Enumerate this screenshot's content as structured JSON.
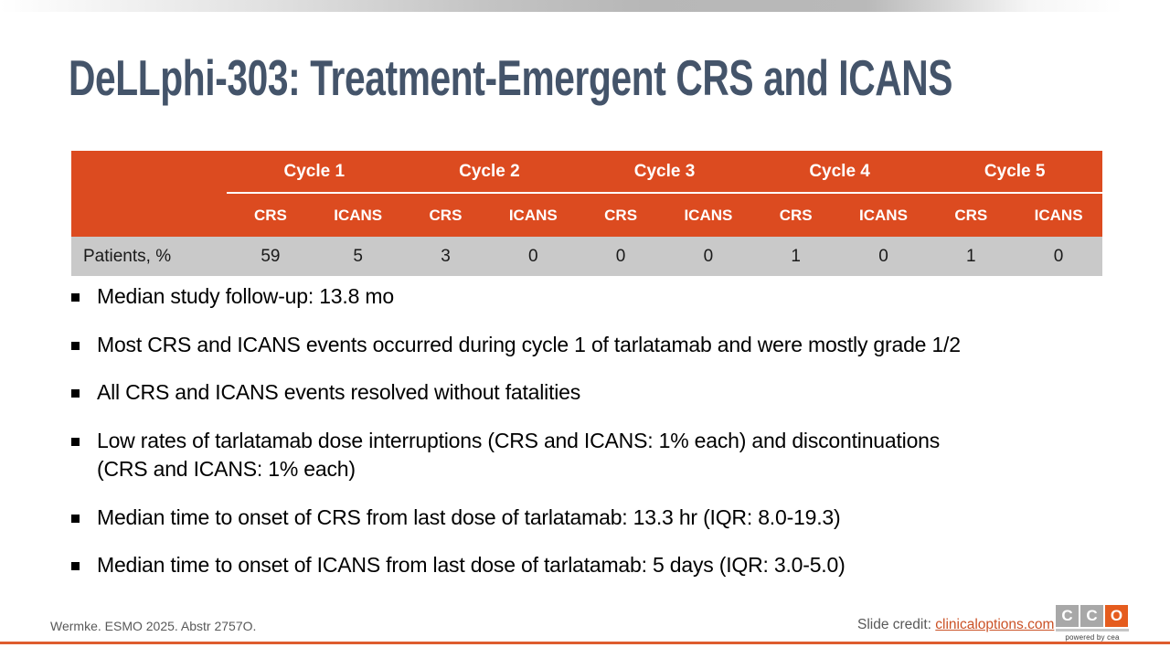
{
  "slide": {
    "title": "DeLLphi-303: Treatment-Emergent CRS and ICANS"
  },
  "table": {
    "cycles": [
      "Cycle 1",
      "Cycle 2",
      "Cycle 3",
      "Cycle 4",
      "Cycle 5"
    ],
    "subheaders": [
      "CRS",
      "ICANS",
      "CRS",
      "ICANS",
      "CRS",
      "ICANS",
      "CRS",
      "ICANS",
      "CRS",
      "ICANS"
    ],
    "row": {
      "label": "Patients, %",
      "values": [
        "59",
        "5",
        "3",
        "0",
        "0",
        "0",
        "1",
        "0",
        "1",
        "0"
      ]
    }
  },
  "bullets": [
    "Median study follow-up: 13.8 mo",
    "Most CRS and ICANS events occurred during cycle 1 of tarlatamab and were mostly grade 1/2",
    "All CRS and ICANS events resolved without fatalities",
    "Low rates of tarlatamab dose interruptions (CRS and ICANS: 1% each) and discontinuations\n(CRS and ICANS: 1% each)",
    "Median time to onset of CRS from last dose of tarlatamab: 13.3 hr (IQR: 8.0-19.3)",
    "Median time to onset of ICANS from last dose of tarlatamab: 5 days (IQR: 3.0-5.0)"
  ],
  "footer": {
    "reference": "Wermke. ESMO 2025. Abstr 2757O.",
    "credit_label": "Slide credit: ",
    "credit_link": "clinicaloptions.com",
    "logo_letters": [
      "C",
      "C",
      "O"
    ],
    "logo_tagline": "powered by cea"
  },
  "colors": {
    "accent_orange": "#DC4B20",
    "title_blue_gray": "#44546A",
    "data_row_gray": "#C9C9C9",
    "footer_text_gray": "#595959",
    "link_orange": "#CB5226",
    "logo_square_gray": "#A8A8A8",
    "logo_square_orange": "#E55C1E",
    "footer_rule_orange": "#DE5C2E"
  }
}
